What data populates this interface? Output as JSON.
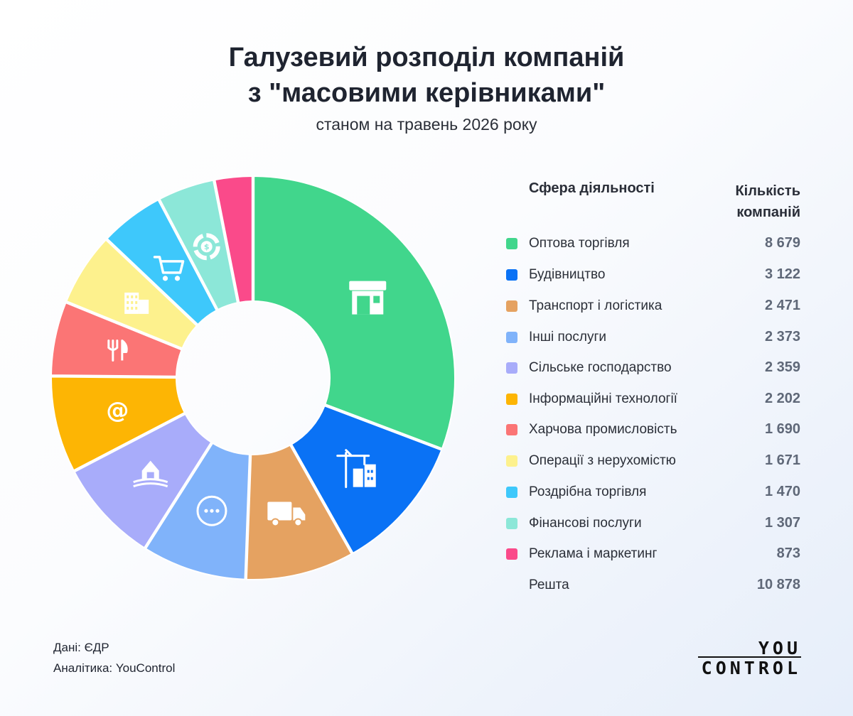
{
  "chart_data": {
    "type": "pie",
    "donut": true,
    "title_lines": [
      "Галузевий розподіл компаній",
      "з \"масовими керівниками\""
    ],
    "subtitle": "станом на травень 2026 року",
    "legend_header": {
      "sphere": "Сфера діяльності",
      "count_lines": [
        "Кількість",
        "компаній"
      ]
    },
    "slices": [
      {
        "label": "Оптова торгівля",
        "value": 8679,
        "display": "8 679",
        "color": "#41d68c",
        "icon": "storefront-icon"
      },
      {
        "label": "Будівництво",
        "value": 3122,
        "display": "3 122",
        "color": "#0a72f5",
        "icon": "construction-crane-icon"
      },
      {
        "label": "Транспорт і логістика",
        "value": 2471,
        "display": "2 471",
        "color": "#e5a261",
        "icon": "delivery-truck-icon"
      },
      {
        "label": "Інші послуги",
        "value": 2373,
        "display": "2 373",
        "color": "#80b3fa",
        "icon": "more-dots-icon"
      },
      {
        "label": "Сільське господарство",
        "value": 2359,
        "display": "2 359",
        "color": "#a8acfa",
        "icon": "barn-icon"
      },
      {
        "label": "Інформаційні технології",
        "value": 2202,
        "display": "2 202",
        "color": "#fdb504",
        "icon": "at-sign-icon"
      },
      {
        "label": "Харчова промисловість",
        "value": 1690,
        "display": "1 690",
        "color": "#fb7575",
        "icon": "fork-knife-icon"
      },
      {
        "label": "Операції з нерухомістю",
        "value": 1671,
        "display": "1 671",
        "color": "#fdf18d",
        "icon": "buildings-icon"
      },
      {
        "label": "Роздрібна торгівля",
        "value": 1470,
        "display": "1 470",
        "color": "#3ec8fb",
        "icon": "shopping-cart-icon"
      },
      {
        "label": "Фінансові послуги",
        "value": 1307,
        "display": "1 307",
        "color": "#8ce7d8",
        "icon": "coin-chart-icon"
      },
      {
        "label": "Реклама і маркетинг",
        "value": 873,
        "display": "873",
        "color": "#fa4a8a",
        "icon": ""
      }
    ],
    "rest": {
      "label": "Решта",
      "value": 10878,
      "display": "10 878"
    }
  },
  "footer": {
    "source": "Дані: ЄДР",
    "analytics": "Аналітика: YouControl"
  },
  "logo": {
    "top": "YOU",
    "bottom": "CONTROL"
  }
}
